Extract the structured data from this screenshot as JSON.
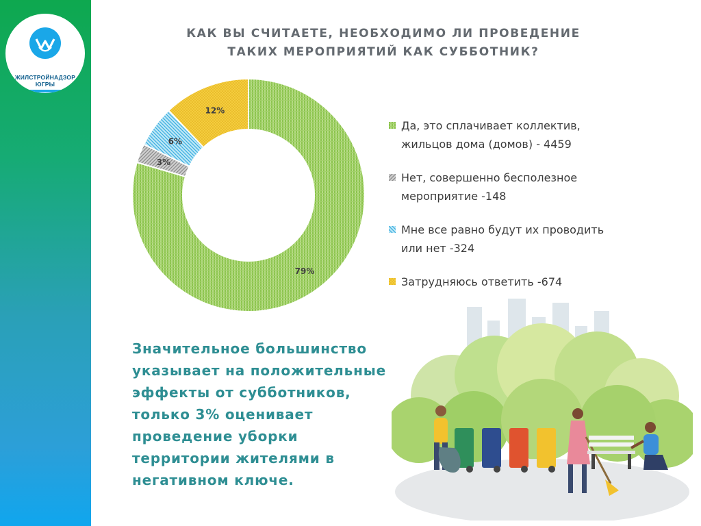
{
  "logo": {
    "text": "ЖИЛСТРОЙНАДЗОР\nЮГРЫ"
  },
  "title": "КАК ВЫ СЧИТАЕТЕ, НЕОБХОДИМО ЛИ ПРОВЕДЕНИЕ\nТАКИХ МЕРОПРИЯТИЙ КАК СУББОТНИК?",
  "summary": "Значительное большинство\nуказывает на положительные\nэффекты от субботников,\nтолько 3% оценивает\nпроведение уборки\nтерритории жителями в\nнегативном ключе.",
  "colors": {
    "yes": "#9acd5c",
    "no": "#a6a6a6",
    "indifferent": "#42b8e4",
    "undecided": "#f2c12e",
    "summary_text": "#2e8e93",
    "title_text": "#646a70"
  },
  "chart_data": {
    "type": "pie",
    "donut": true,
    "title": "КАК ВЫ СЧИТАЕТЕ, НЕОБХОДИМО ЛИ ПРОВЕДЕНИЕ ТАКИХ МЕРОПРИЯТИЙ КАК СУББОТНИК?",
    "legend_position": "right",
    "slices": [
      {
        "key": "yes",
        "label": "Да, это сплачивает коллектив,\nжильцов дома (домов) - 4459",
        "value": 4459,
        "percent_label": "79%",
        "color": "#9acd5c"
      },
      {
        "key": "no",
        "label": "Нет, совершенно бесполезное\nмероприятие -148",
        "value": 148,
        "percent_label": "3%",
        "color": "#a6a6a6"
      },
      {
        "key": "indifferent",
        "label": "Мне все равно будут их проводить\nили нет -324",
        "value": 324,
        "percent_label": "6%",
        "color": "#42b8e4"
      },
      {
        "key": "undecided",
        "label": "Затрудняюсь ответить -674",
        "value": 674,
        "percent_label": "12%",
        "color": "#f2c12e"
      }
    ]
  }
}
